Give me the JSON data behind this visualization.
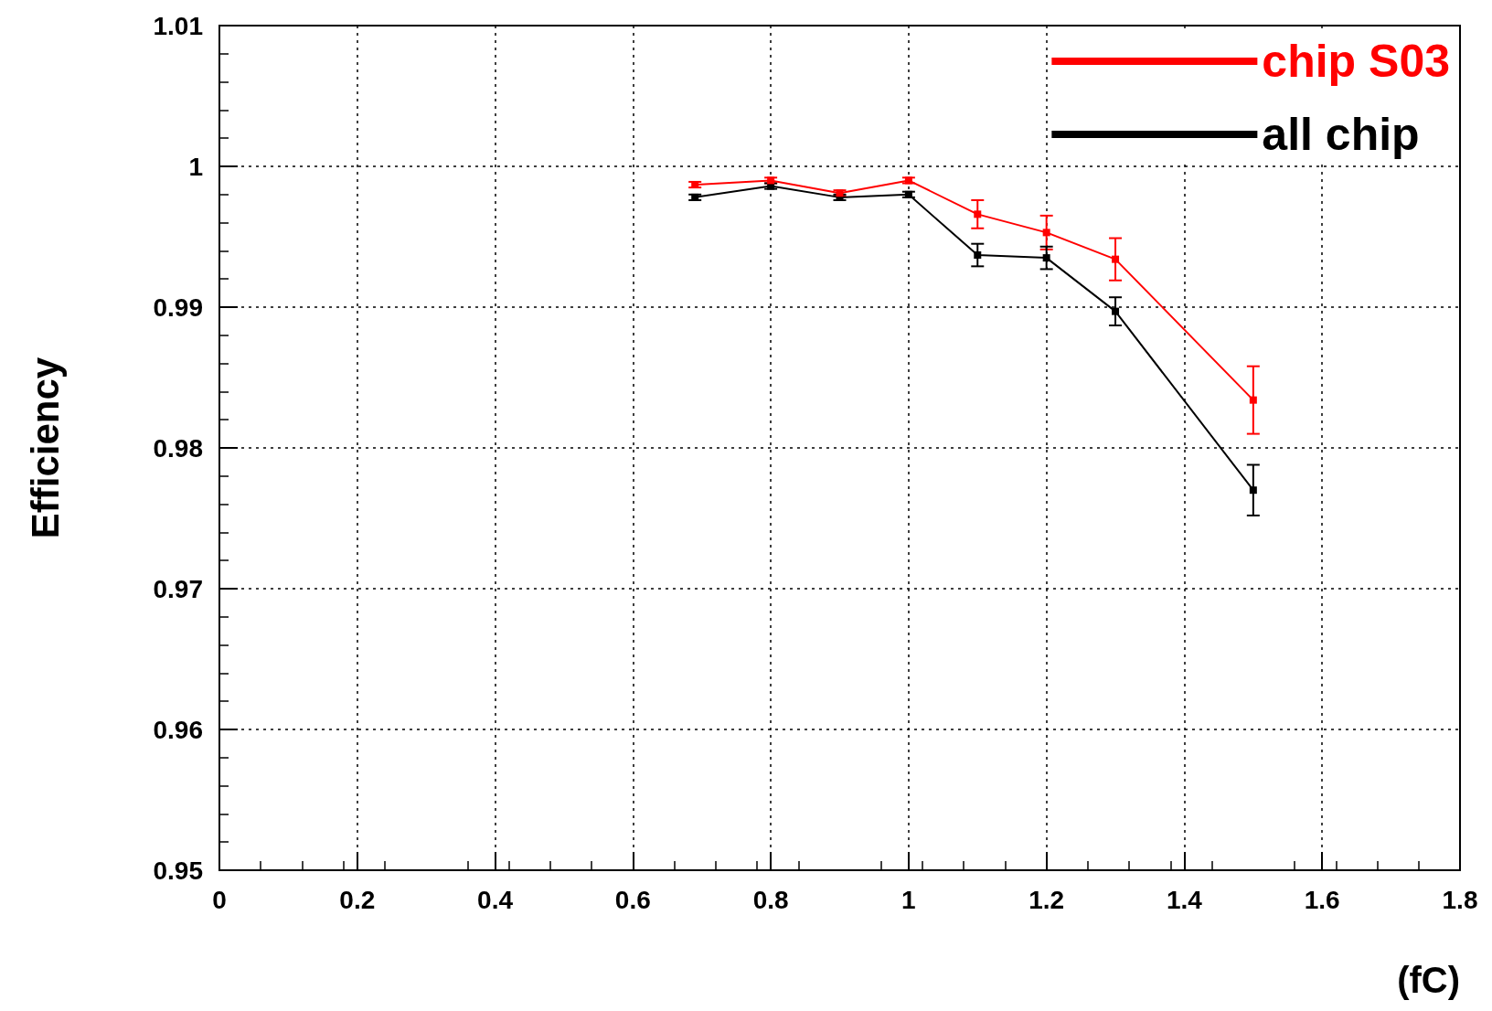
{
  "chart_data": {
    "type": "line",
    "xlabel": "(fC)",
    "ylabel": "Efficiency",
    "x": [
      0.69,
      0.8,
      0.9,
      1.0,
      1.1,
      1.2,
      1.3,
      1.5
    ],
    "series": [
      {
        "name": "chip S03",
        "color": "#ff0000",
        "values": [
          0.9987,
          0.999,
          0.9981,
          0.999,
          0.9966,
          0.9953,
          0.9934,
          0.9834
        ],
        "errors": [
          0.0002,
          0.0002,
          0.0002,
          0.0002,
          0.001,
          0.0012,
          0.0015,
          0.0024
        ]
      },
      {
        "name": "all chip",
        "color": "#000000",
        "values": [
          0.9978,
          0.9986,
          0.9978,
          0.998,
          0.9937,
          0.9935,
          0.9897,
          0.977
        ],
        "errors": [
          0.0002,
          0.0002,
          0.0002,
          0.0002,
          0.0008,
          0.0008,
          0.001,
          0.0018
        ]
      }
    ],
    "xlim": [
      0,
      1.8
    ],
    "xticks": [
      0,
      0.2,
      0.4,
      0.6,
      0.8,
      1,
      1.2,
      1.4,
      1.6,
      1.8
    ],
    "ylim": [
      0.95,
      1.01
    ],
    "yticks": [
      0.95,
      0.96,
      0.97,
      0.98,
      0.99,
      1,
      1.01
    ],
    "grid": true,
    "legend": "top right",
    "marker": "square"
  }
}
